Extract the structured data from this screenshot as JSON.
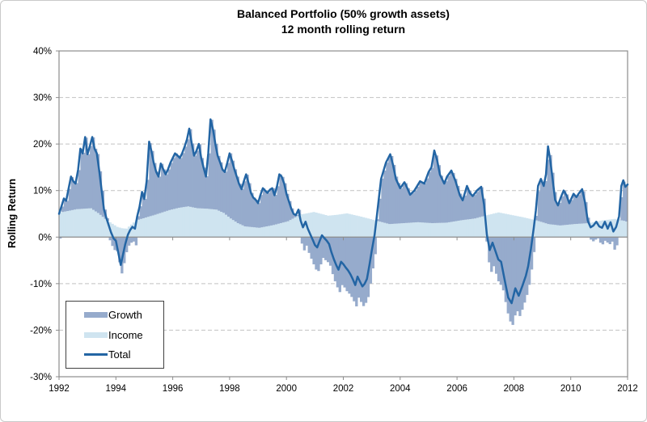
{
  "chart_data": {
    "type": "combo-stacked-column-line",
    "title_lines": [
      "Balanced Portfolio (50% growth assets)",
      "12 month rolling return"
    ],
    "ylabel": "Rolling Return",
    "y_axis": {
      "min": -30,
      "max": 40,
      "tick_step": 10,
      "ticks": [
        40,
        30,
        20,
        10,
        0,
        -10,
        -20,
        -30
      ],
      "tick_labels": [
        "40%",
        "30%",
        "20%",
        "10%",
        "0%",
        "-10%",
        "-20%",
        "-30%"
      ]
    },
    "x_axis": {
      "min": 1992,
      "max": 2012,
      "ticks": [
        1992,
        1994,
        1996,
        1998,
        2000,
        2002,
        2004,
        2006,
        2008,
        2010,
        2012
      ],
      "tick_labels": [
        "1992",
        "1994",
        "1996",
        "1998",
        "2000",
        "2002",
        "2004",
        "2006",
        "2008",
        "2010",
        "2012"
      ]
    },
    "grid": {
      "dashed": true,
      "color": "#c2c2c2",
      "zero_line_color": "#8c8c8c",
      "border_color": "#8c8c8c"
    },
    "legend": {
      "position": "inside-left-bottom"
    },
    "sampling_months": 1,
    "series": [
      {
        "name": "Growth",
        "type": "column-stacked",
        "color": "#96abcc",
        "derivation": "total_minus_income"
      },
      {
        "name": "Income",
        "type": "column-stacked",
        "color": "#cfe4f0"
      },
      {
        "name": "Total",
        "type": "line",
        "color": "#2365a4",
        "width": 2.5
      }
    ],
    "total_points": [
      [
        1992.0,
        5.0
      ],
      [
        1992.08,
        6.5
      ],
      [
        1992.17,
        8.3
      ],
      [
        1992.25,
        7.8
      ],
      [
        1992.42,
        13.0
      ],
      [
        1992.5,
        12.0
      ],
      [
        1992.58,
        11.5
      ],
      [
        1992.67,
        14.5
      ],
      [
        1992.75,
        19.0
      ],
      [
        1992.83,
        18.0
      ],
      [
        1992.92,
        21.5
      ],
      [
        1993.0,
        17.8
      ],
      [
        1993.08,
        19.5
      ],
      [
        1993.17,
        21.5
      ],
      [
        1993.25,
        19.0
      ],
      [
        1993.33,
        18.0
      ],
      [
        1993.42,
        14.0
      ],
      [
        1993.5,
        10.0
      ],
      [
        1993.58,
        6.0
      ],
      [
        1993.67,
        4.0
      ],
      [
        1993.83,
        1.0
      ],
      [
        1993.92,
        -0.3
      ],
      [
        1994.0,
        -0.8
      ],
      [
        1994.17,
        -6.0
      ],
      [
        1994.33,
        -1.5
      ],
      [
        1994.42,
        0.5
      ],
      [
        1994.5,
        1.5
      ],
      [
        1994.58,
        2.2
      ],
      [
        1994.67,
        1.8
      ],
      [
        1994.75,
        4.5
      ],
      [
        1994.83,
        6.5
      ],
      [
        1994.92,
        9.7
      ],
      [
        1995.0,
        8.2
      ],
      [
        1995.08,
        12.0
      ],
      [
        1995.17,
        20.5
      ],
      [
        1995.25,
        18.5
      ],
      [
        1995.33,
        16.0
      ],
      [
        1995.42,
        14.0
      ],
      [
        1995.5,
        13.0
      ],
      [
        1995.58,
        15.8
      ],
      [
        1995.67,
        14.5
      ],
      [
        1995.75,
        13.5
      ],
      [
        1995.83,
        14.5
      ],
      [
        1995.92,
        16.0
      ],
      [
        1996.0,
        17.0
      ],
      [
        1996.08,
        18.0
      ],
      [
        1996.17,
        17.5
      ],
      [
        1996.25,
        17.0
      ],
      [
        1996.33,
        18.0
      ],
      [
        1996.42,
        19.5
      ],
      [
        1996.5,
        21.0
      ],
      [
        1996.58,
        23.3
      ],
      [
        1996.67,
        20.0
      ],
      [
        1996.75,
        17.5
      ],
      [
        1996.83,
        18.5
      ],
      [
        1996.92,
        20.0
      ],
      [
        1997.0,
        17.0
      ],
      [
        1997.08,
        15.0
      ],
      [
        1997.17,
        13.0
      ],
      [
        1997.25,
        18.0
      ],
      [
        1997.33,
        25.3
      ],
      [
        1997.42,
        23.0
      ],
      [
        1997.5,
        20.0
      ],
      [
        1997.58,
        17.5
      ],
      [
        1997.67,
        16.0
      ],
      [
        1997.75,
        14.5
      ],
      [
        1997.83,
        14.0
      ],
      [
        1997.92,
        16.0
      ],
      [
        1998.0,
        18.0
      ],
      [
        1998.08,
        16.5
      ],
      [
        1998.17,
        14.5
      ],
      [
        1998.25,
        13.0
      ],
      [
        1998.33,
        11.5
      ],
      [
        1998.42,
        10.3
      ],
      [
        1998.5,
        12.0
      ],
      [
        1998.58,
        13.5
      ],
      [
        1998.67,
        11.5
      ],
      [
        1998.75,
        9.5
      ],
      [
        1998.83,
        8.5
      ],
      [
        1998.92,
        8.0
      ],
      [
        1999.0,
        7.3
      ],
      [
        1999.08,
        9.0
      ],
      [
        1999.17,
        10.5
      ],
      [
        1999.25,
        10.0
      ],
      [
        1999.33,
        9.5
      ],
      [
        1999.42,
        10.2
      ],
      [
        1999.5,
        10.5
      ],
      [
        1999.58,
        9.0
      ],
      [
        1999.67,
        11.0
      ],
      [
        1999.75,
        13.5
      ],
      [
        1999.83,
        13.0
      ],
      [
        1999.92,
        11.5
      ],
      [
        2000.0,
        9.3
      ],
      [
        2000.08,
        7.8
      ],
      [
        2000.17,
        6.1
      ],
      [
        2000.25,
        5.0
      ],
      [
        2000.33,
        4.7
      ],
      [
        2000.42,
        5.9
      ],
      [
        2000.5,
        3.5
      ],
      [
        2000.58,
        2.1
      ],
      [
        2000.67,
        3.3
      ],
      [
        2000.75,
        1.8
      ],
      [
        2000.83,
        0.7
      ],
      [
        2000.92,
        -0.5
      ],
      [
        2001.0,
        -1.7
      ],
      [
        2001.08,
        -2.2
      ],
      [
        2001.17,
        -0.8
      ],
      [
        2001.25,
        0.4
      ],
      [
        2001.33,
        -0.2
      ],
      [
        2001.42,
        -0.8
      ],
      [
        2001.5,
        -1.5
      ],
      [
        2001.58,
        -3.2
      ],
      [
        2001.67,
        -4.8
      ],
      [
        2001.75,
        -6.0
      ],
      [
        2001.83,
        -7.0
      ],
      [
        2001.92,
        -5.3
      ],
      [
        2002.0,
        -5.8
      ],
      [
        2002.08,
        -6.5
      ],
      [
        2002.17,
        -7.2
      ],
      [
        2002.25,
        -8.0
      ],
      [
        2002.33,
        -9.0
      ],
      [
        2002.42,
        -10.3
      ],
      [
        2002.5,
        -8.5
      ],
      [
        2002.58,
        -9.5
      ],
      [
        2002.67,
        -10.6
      ],
      [
        2002.75,
        -10.0
      ],
      [
        2002.83,
        -9.0
      ],
      [
        2002.92,
        -6.0
      ],
      [
        2003.0,
        -3.0
      ],
      [
        2003.1,
        0.5
      ],
      [
        2003.17,
        4.0
      ],
      [
        2003.33,
        12.5
      ],
      [
        2003.5,
        16.0
      ],
      [
        2003.65,
        17.8
      ],
      [
        2003.75,
        15.5
      ],
      [
        2003.85,
        12.5
      ],
      [
        2004.0,
        10.5
      ],
      [
        2004.15,
        11.8
      ],
      [
        2004.25,
        10.5
      ],
      [
        2004.35,
        9.1
      ],
      [
        2004.5,
        10.0
      ],
      [
        2004.7,
        12.0
      ],
      [
        2004.85,
        11.5
      ],
      [
        2005.0,
        14.0
      ],
      [
        2005.1,
        15.0
      ],
      [
        2005.2,
        18.6
      ],
      [
        2005.3,
        16.5
      ],
      [
        2005.4,
        13.4
      ],
      [
        2005.55,
        11.5
      ],
      [
        2005.65,
        13.0
      ],
      [
        2005.8,
        14.3
      ],
      [
        2005.95,
        12.0
      ],
      [
        2006.1,
        9.0
      ],
      [
        2006.2,
        7.9
      ],
      [
        2006.35,
        11.0
      ],
      [
        2006.45,
        9.5
      ],
      [
        2006.55,
        8.8
      ],
      [
        2006.7,
        10.0
      ],
      [
        2006.85,
        10.8
      ],
      [
        2006.95,
        7.0
      ],
      [
        2007.05,
        0.5
      ],
      [
        2007.15,
        -2.8
      ],
      [
        2007.25,
        -1.2
      ],
      [
        2007.35,
        -3.0
      ],
      [
        2007.45,
        -4.8
      ],
      [
        2007.55,
        -5.3
      ],
      [
        2007.7,
        -10.0
      ],
      [
        2007.8,
        -13.0
      ],
      [
        2007.92,
        -14.2
      ],
      [
        2008.05,
        -11.0
      ],
      [
        2008.17,
        -12.6
      ],
      [
        2008.3,
        -10.5
      ],
      [
        2008.42,
        -8.3
      ],
      [
        2008.5,
        -6.3
      ],
      [
        2008.6,
        -2.5
      ],
      [
        2008.7,
        2.0
      ],
      [
        2008.77,
        5.6
      ],
      [
        2008.85,
        11.0
      ],
      [
        2008.95,
        12.5
      ],
      [
        2009.05,
        11.0
      ],
      [
        2009.13,
        13.5
      ],
      [
        2009.2,
        19.5
      ],
      [
        2009.28,
        16.5
      ],
      [
        2009.35,
        13.0
      ],
      [
        2009.45,
        8.0
      ],
      [
        2009.55,
        6.8
      ],
      [
        2009.65,
        8.5
      ],
      [
        2009.75,
        10.0
      ],
      [
        2009.85,
        9.0
      ],
      [
        2009.95,
        7.3
      ],
      [
        2010.1,
        9.3
      ],
      [
        2010.2,
        8.6
      ],
      [
        2010.3,
        9.5
      ],
      [
        2010.4,
        10.3
      ],
      [
        2010.5,
        7.5
      ],
      [
        2010.6,
        3.5
      ],
      [
        2010.7,
        2.1
      ],
      [
        2010.8,
        2.5
      ],
      [
        2010.9,
        3.3
      ],
      [
        2011.0,
        2.3
      ],
      [
        2011.1,
        2.0
      ],
      [
        2011.2,
        3.3
      ],
      [
        2011.3,
        1.8
      ],
      [
        2011.4,
        3.2
      ],
      [
        2011.5,
        1.2
      ],
      [
        2011.6,
        2.2
      ],
      [
        2011.7,
        4.5
      ],
      [
        2011.78,
        11.0
      ],
      [
        2011.85,
        12.2
      ],
      [
        2011.92,
        10.8
      ],
      [
        2012.0,
        11.3
      ]
    ],
    "income_points": [
      [
        1992.0,
        5.3
      ],
      [
        1992.25,
        5.6
      ],
      [
        1992.58,
        6.0
      ],
      [
        1992.83,
        6.1
      ],
      [
        1993.08,
        6.2
      ],
      [
        1993.33,
        5.2
      ],
      [
        1993.67,
        3.5
      ],
      [
        1994.0,
        2.2
      ],
      [
        1994.17,
        1.9
      ],
      [
        1994.33,
        1.8
      ],
      [
        1994.67,
        3.6
      ],
      [
        1995.0,
        4.2
      ],
      [
        1995.33,
        4.8
      ],
      [
        1995.83,
        5.8
      ],
      [
        1996.17,
        6.3
      ],
      [
        1996.5,
        6.6
      ],
      [
        1996.83,
        6.2
      ],
      [
        1997.17,
        6.1
      ],
      [
        1997.5,
        5.9
      ],
      [
        1997.75,
        5.2
      ],
      [
        1998.0,
        4.0
      ],
      [
        1998.25,
        3.0
      ],
      [
        1998.5,
        2.3
      ],
      [
        1999.0,
        2.0
      ],
      [
        1999.5,
        2.6
      ],
      [
        2000.0,
        3.4
      ],
      [
        2000.42,
        4.8
      ],
      [
        2000.92,
        5.4
      ],
      [
        2001.42,
        4.6
      ],
      [
        2001.75,
        4.8
      ],
      [
        2002.08,
        5.1
      ],
      [
        2002.58,
        4.4
      ],
      [
        2003.08,
        3.6
      ],
      [
        2003.58,
        2.8
      ],
      [
        2004.08,
        3.0
      ],
      [
        2004.58,
        3.2
      ],
      [
        2005.08,
        3.0
      ],
      [
        2005.58,
        3.1
      ],
      [
        2006.08,
        3.6
      ],
      [
        2006.58,
        4.0
      ],
      [
        2007.0,
        4.7
      ],
      [
        2007.42,
        5.3
      ],
      [
        2007.83,
        4.8
      ],
      [
        2008.25,
        4.3
      ],
      [
        2008.75,
        3.6
      ],
      [
        2009.17,
        2.8
      ],
      [
        2009.58,
        2.5
      ],
      [
        2010.08,
        2.8
      ],
      [
        2010.58,
        3.0
      ],
      [
        2011.08,
        3.6
      ],
      [
        2011.5,
        3.9
      ],
      [
        2011.83,
        3.5
      ],
      [
        2012.0,
        3.2
      ]
    ]
  }
}
